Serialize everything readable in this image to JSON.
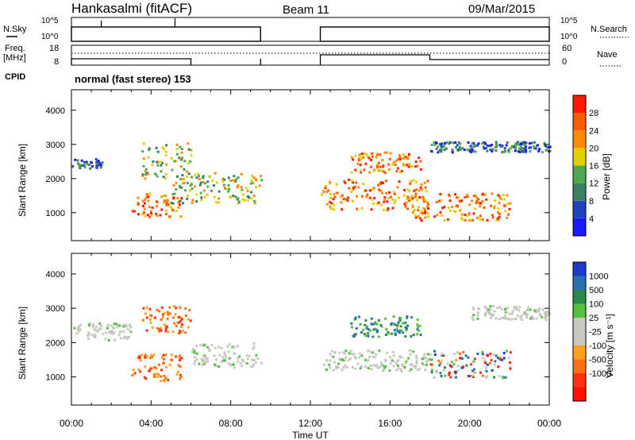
{
  "header": {
    "station": "Hankasalmi (fitACF)",
    "beam": "Beam 11",
    "date": "09/Mar/2015"
  },
  "status_panels": {
    "left_labels": [
      "N.Sky",
      "Freq.",
      "[MHz]",
      "CPID"
    ],
    "right_labels": [
      "N.Search",
      "Nave"
    ],
    "nsky_ticks": [
      "10^5",
      "10^0"
    ],
    "freq_ticks": [
      "18",
      "8"
    ],
    "nave_ticks": [
      "60",
      "0"
    ],
    "nsearch_ticks": [
      "10^5",
      "10^0"
    ],
    "cpid_text": "normal (fast stereo) 153"
  },
  "colors": {
    "power": [
      "#1a1aff",
      "#2244bb",
      "#3a8060",
      "#4fa84f",
      "#e0d000",
      "#ff8c00",
      "#ff5a00",
      "#ff1a00"
    ],
    "velocity": [
      "#1a3cc8",
      "#2a6fb0",
      "#2a8a4a",
      "#55c040",
      "#c8c8c0",
      "#c8c8c0",
      "#ffa020",
      "#ff7010",
      "#ff3010",
      "#ff1000"
    ]
  },
  "chart_data": [
    {
      "type": "heatmap",
      "title": "Power",
      "xlabel": "",
      "ylabel": "Slant Range [km]",
      "xlim": [
        "00:00",
        "00:00"
      ],
      "xticks": [
        "00:00",
        "04:00",
        "08:00",
        "12:00",
        "16:00",
        "20:00",
        "00:00"
      ],
      "ylim": [
        180,
        4600
      ],
      "yticks": [
        "1000",
        "2000",
        "3000",
        "4000"
      ],
      "colorbar": {
        "label": "Power [dB]",
        "ticks": [
          "4",
          "8",
          "12",
          "16",
          "20",
          "24",
          "28"
        ],
        "range": [
          0,
          32
        ]
      },
      "data_gap_ut": [
        9.5,
        12.5
      ],
      "features": [
        {
          "t": [
            0.0,
            1.5
          ],
          "range_km": [
            2300,
            2600
          ],
          "level": "low"
        },
        {
          "t": [
            3.0,
            5.5
          ],
          "range_km": [
            900,
            1600
          ],
          "level": "high"
        },
        {
          "t": [
            3.5,
            6.0
          ],
          "range_km": [
            2000,
            3100
          ],
          "level": "medium"
        },
        {
          "t": [
            5.0,
            9.5
          ],
          "range_km": [
            1300,
            2200
          ],
          "level": "medium"
        },
        {
          "t": [
            12.5,
            18.0
          ],
          "range_km": [
            1100,
            2000
          ],
          "level": "high"
        },
        {
          "t": [
            14.0,
            17.5
          ],
          "range_km": [
            2200,
            2800
          ],
          "level": "high"
        },
        {
          "t": [
            17.0,
            22.0
          ],
          "range_km": [
            800,
            1600
          ],
          "level": "high"
        },
        {
          "t": [
            18.0,
            24.0
          ],
          "range_km": [
            2800,
            3100
          ],
          "level": "low"
        }
      ]
    },
    {
      "type": "heatmap",
      "title": "Velocity",
      "xlabel": "Time UT",
      "ylabel": "Slant Range [km]",
      "xlim": [
        "00:00",
        "00:00"
      ],
      "xticks": [
        "00:00",
        "04:00",
        "08:00",
        "12:00",
        "16:00",
        "20:00",
        "00:00"
      ],
      "ylim": [
        180,
        4600
      ],
      "yticks": [
        "1000",
        "2000",
        "3000",
        "4000"
      ],
      "colorbar": {
        "label": "Velocity [m s⁻¹]",
        "ticks": [
          "1000",
          "500",
          "100",
          "25",
          "-25",
          "-100",
          "-500",
          "-1000"
        ]
      },
      "data_gap_ut": [
        9.5,
        12.5
      ],
      "features": [
        {
          "t": [
            0.0,
            3.0
          ],
          "range_km": [
            2100,
            2600
          ],
          "velocity": "ground scatter"
        },
        {
          "t": [
            3.0,
            5.5
          ],
          "range_km": [
            900,
            1700
          ],
          "velocity": "negative"
        },
        {
          "t": [
            3.5,
            6.0
          ],
          "range_km": [
            2300,
            3100
          ],
          "velocity": "negative"
        },
        {
          "t": [
            6.0,
            9.5
          ],
          "range_km": [
            1300,
            2000
          ],
          "velocity": "ground scatter"
        },
        {
          "t": [
            12.5,
            18.0
          ],
          "range_km": [
            1200,
            1800
          ],
          "velocity": "ground scatter"
        },
        {
          "t": [
            14.0,
            17.5
          ],
          "range_km": [
            2200,
            2800
          ],
          "velocity": "positive"
        },
        {
          "t": [
            18.0,
            22.0
          ],
          "range_km": [
            1000,
            1800
          ],
          "velocity": "mixed"
        },
        {
          "t": [
            20.0,
            24.0
          ],
          "range_km": [
            2700,
            3100
          ],
          "velocity": "ground scatter"
        }
      ]
    }
  ]
}
